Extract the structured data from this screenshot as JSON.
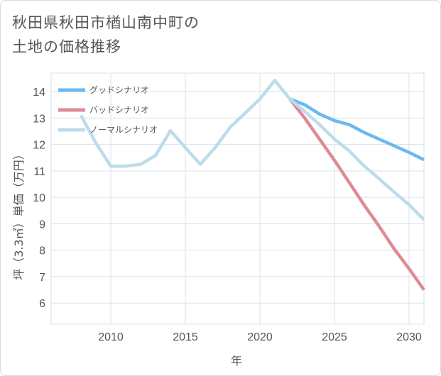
{
  "title_line1": "秋田県秋田市楢山南中町の",
  "title_line2": "土地の価格推移",
  "chart_data": {
    "type": "line",
    "title": "秋田県秋田市楢山南中町の土地の価格推移",
    "xlabel": "年",
    "ylabel": "坪（3.3㎡）単価（万円）",
    "xlim": [
      2006,
      2031
    ],
    "ylim": [
      5.2,
      14.7
    ],
    "x_ticks": [
      2010,
      2015,
      2020,
      2025,
      2030
    ],
    "y_ticks": [
      6,
      7,
      8,
      9,
      10,
      11,
      12,
      13,
      14
    ],
    "grid": true,
    "legend_position": "top-left",
    "series": [
      {
        "name": "グッドシナリオ",
        "color": "#6cb8ef",
        "x": [
          2022,
          2023,
          2024,
          2025,
          2026,
          2027,
          2028,
          2029,
          2030,
          2031
        ],
        "values": [
          13.72,
          13.5,
          13.15,
          12.9,
          12.75,
          12.45,
          12.2,
          11.95,
          11.7,
          11.42
        ]
      },
      {
        "name": "バッドシナリオ",
        "color": "#df8b93",
        "x": [
          2022,
          2023,
          2024,
          2025,
          2026,
          2027,
          2028,
          2029,
          2030,
          2031
        ],
        "values": [
          13.72,
          13.0,
          12.2,
          11.4,
          10.55,
          9.7,
          8.9,
          8.05,
          7.3,
          6.5
        ]
      },
      {
        "name": "ノーマルシナリオ",
        "color": "#bddcea",
        "x": [
          2008,
          2009,
          2010,
          2011,
          2012,
          2013,
          2014,
          2015,
          2016,
          2017,
          2018,
          2019,
          2020,
          2021,
          2022,
          2023,
          2024,
          2025,
          2026,
          2027,
          2028,
          2029,
          2030,
          2031
        ],
        "values": [
          13.1,
          12.05,
          11.18,
          11.18,
          11.25,
          11.58,
          12.52,
          11.88,
          11.25,
          11.88,
          12.65,
          13.18,
          13.72,
          14.43,
          13.72,
          13.25,
          12.75,
          12.2,
          11.75,
          11.18,
          10.7,
          10.2,
          9.72,
          9.15
        ]
      }
    ]
  }
}
